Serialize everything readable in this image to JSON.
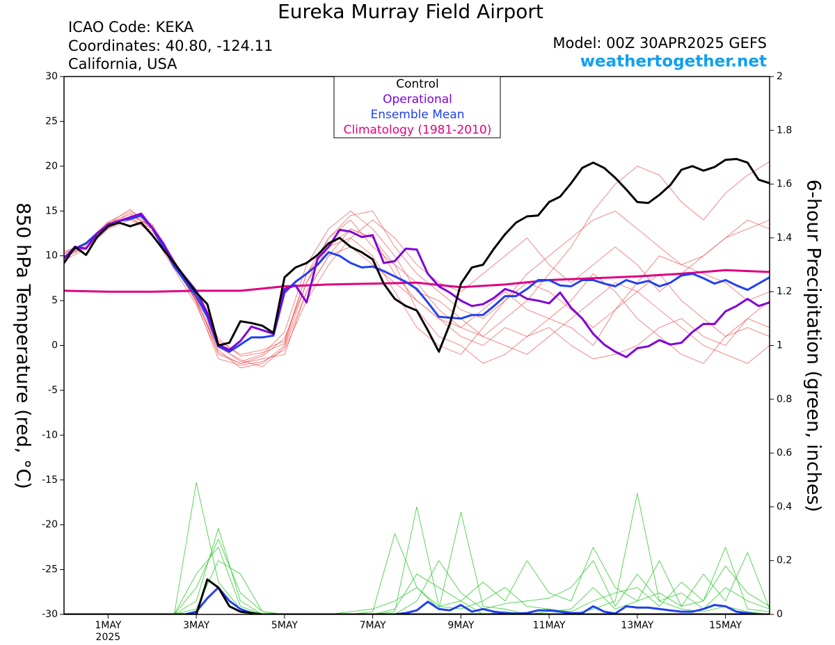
{
  "chart_data": {
    "type": "line",
    "title": "Eureka Murray Field Airport",
    "info": [
      "ICAO Code: KEKA",
      "Coordinates: 40.80, -124.11",
      "California, USA"
    ],
    "model": "Model: 00Z 30APR2025 GEFS",
    "source": "weathertogether.net",
    "ylabel": "850 hPa Temperature (red, °C)",
    "y2label": "6-hour Precipitation (green, inches)",
    "xlim": [
      0,
      384
    ],
    "xticks": [
      {
        "value": 24,
        "label": "1MAY"
      },
      {
        "value": 72,
        "label": "3MAY"
      },
      {
        "value": 120,
        "label": "5MAY"
      },
      {
        "value": 168,
        "label": "7MAY"
      },
      {
        "value": 216,
        "label": "9MAY"
      },
      {
        "value": 264,
        "label": "11MAY"
      },
      {
        "value": 312,
        "label": "13MAY"
      },
      {
        "value": 360,
        "label": "15MAY"
      }
    ],
    "x_sublabel": "2025",
    "ylim": [
      -30,
      30
    ],
    "yticks": [
      -30,
      -25,
      -20,
      -15,
      -10,
      -5,
      0,
      5,
      10,
      15,
      20,
      25,
      30
    ],
    "y2lim": [
      0,
      2
    ],
    "y2ticks": [
      0,
      0.2,
      0.4,
      0.6,
      0.8,
      1,
      1.2,
      1.4,
      1.6,
      1.8,
      2
    ],
    "x": [
      0,
      6,
      12,
      18,
      24,
      30,
      36,
      42,
      48,
      54,
      60,
      66,
      72,
      78,
      84,
      90,
      96,
      102,
      108,
      114,
      120,
      126,
      132,
      138,
      144,
      150,
      156,
      162,
      168,
      174,
      180,
      186,
      192,
      198,
      204,
      210,
      216,
      222,
      228,
      234,
      240,
      246,
      252,
      258,
      264,
      270,
      276,
      282,
      288,
      294,
      300,
      306,
      312,
      318,
      324,
      330,
      336,
      342,
      348,
      354,
      360,
      366,
      372,
      378,
      384
    ],
    "series": [
      {
        "name": "Control",
        "color": "#000000",
        "values": [
          9.2,
          11.0,
          10.1,
          12.1,
          13.3,
          13.7,
          13.3,
          13.7,
          12.3,
          10.7,
          9.2,
          7.5,
          5.9,
          4.6,
          0.0,
          0.3,
          2.7,
          2.5,
          2.2,
          1.4,
          7.6,
          8.7,
          9.2,
          10.1,
          11.4,
          12.0,
          11.0,
          10.4,
          9.6,
          6.9,
          5.2,
          4.4,
          3.9,
          1.7,
          -0.7,
          2.4,
          6.9,
          8.7,
          9.0,
          10.8,
          12.4,
          13.7,
          14.4,
          14.5,
          16.0,
          16.6,
          18.1,
          19.8,
          20.4,
          19.8,
          18.7,
          17.4,
          16.0,
          15.9,
          16.8,
          17.9,
          19.6,
          20.0,
          19.5,
          19.9,
          20.7,
          20.8,
          20.4,
          18.5,
          18.1
        ]
      },
      {
        "name": "Operational",
        "color": "#8000d8",
        "values": [
          9.7,
          11.0,
          10.8,
          12.5,
          13.5,
          13.9,
          14.3,
          14.7,
          13.1,
          11.4,
          9.2,
          7.6,
          6.1,
          3.6,
          0.1,
          -0.5,
          0.5,
          2.1,
          1.7,
          1.3,
          6.3,
          6.7,
          4.8,
          9.7,
          11.0,
          12.9,
          12.7,
          12.1,
          12.3,
          9.2,
          9.4,
          10.8,
          10.7,
          8.0,
          6.6,
          5.9,
          5.0,
          4.4,
          4.6,
          5.3,
          6.3,
          5.9,
          5.2,
          5.0,
          4.7,
          5.9,
          4.2,
          3.0,
          1.3,
          0.1,
          -0.7,
          -1.3,
          -0.3,
          -0.1,
          0.6,
          0.1,
          0.3,
          1.5,
          2.4,
          2.4,
          3.8,
          4.4,
          5.2,
          4.4,
          4.8
        ]
      },
      {
        "name": "Ensemble Mean",
        "color": "#2040f0",
        "values": [
          9.8,
          10.8,
          11.4,
          12.5,
          13.3,
          13.9,
          14.1,
          14.5,
          13.1,
          11.0,
          8.8,
          7.1,
          5.5,
          3.2,
          -0.1,
          -0.7,
          0.1,
          0.9,
          0.9,
          1.1,
          5.9,
          7.1,
          8.0,
          9.0,
          10.4,
          10.0,
          9.2,
          8.7,
          8.8,
          8.3,
          7.7,
          7.1,
          6.3,
          4.8,
          3.2,
          3.1,
          3.0,
          3.4,
          3.4,
          4.4,
          5.5,
          5.5,
          6.3,
          7.3,
          7.3,
          6.7,
          6.6,
          7.3,
          7.3,
          6.9,
          6.6,
          7.3,
          6.9,
          7.2,
          6.6,
          7.0,
          7.8,
          8.0,
          7.5,
          6.9,
          7.3,
          6.7,
          6.2,
          6.9,
          7.6
        ]
      },
      {
        "name": "Climatology (1981-2010)",
        "color": "#e0007f",
        "x": [
          0,
          24,
          48,
          72,
          96,
          120,
          144,
          168,
          192,
          216,
          240,
          264,
          288,
          312,
          336,
          360,
          384
        ],
        "values": [
          6.1,
          6.0,
          6.0,
          6.1,
          6.1,
          6.6,
          6.8,
          6.9,
          7.0,
          6.5,
          6.8,
          7.3,
          7.5,
          7.7,
          8.0,
          8.4,
          8.2
        ]
      }
    ],
    "members": {
      "color": "#f05050",
      "x": [
        0,
        12,
        24,
        36,
        48,
        60,
        72,
        84,
        96,
        108,
        120,
        132,
        144,
        156,
        168,
        180,
        192,
        204,
        216,
        228,
        240,
        252,
        264,
        276,
        288,
        300,
        312,
        324,
        336,
        348,
        360,
        372,
        384
      ],
      "values": [
        [
          10.2,
          11.5,
          13.8,
          15,
          13.5,
          9.5,
          5.5,
          0.5,
          -1,
          -0.5,
          0.5,
          8,
          12,
          14,
          11,
          9,
          7,
          4,
          2,
          1,
          3,
          5,
          8,
          11,
          15,
          18,
          20,
          19,
          16,
          14,
          17,
          19,
          20.5
        ],
        [
          9.8,
          11,
          13.2,
          14.3,
          12.5,
          8.5,
          4.5,
          -1,
          -2,
          -1.5,
          -1,
          6,
          10,
          13,
          12,
          8,
          5,
          3,
          1,
          0,
          2,
          1,
          3,
          2,
          0,
          4,
          6,
          8,
          5,
          3,
          1,
          2,
          1
        ],
        [
          10,
          11.2,
          13.5,
          14.8,
          13,
          9,
          5,
          -0.5,
          -2.5,
          -2,
          0,
          7,
          11,
          12,
          10,
          6,
          2,
          0,
          -1,
          2,
          5,
          8,
          10,
          12,
          14,
          15,
          13,
          11,
          9,
          10,
          12,
          13,
          14
        ],
        [
          9.5,
          10.8,
          13,
          14,
          12.8,
          8.8,
          5.2,
          0,
          -1.8,
          -1,
          1.5,
          9,
          13,
          15,
          13,
          10,
          6,
          5,
          3,
          1,
          0,
          -1,
          1,
          3,
          5,
          7,
          6,
          4,
          2,
          0,
          -1,
          -2,
          0
        ],
        [
          10.5,
          11.3,
          13.7,
          14.6,
          13.2,
          9.2,
          4.8,
          -1.5,
          -2.2,
          -1.8,
          -0.5,
          5,
          9,
          12,
          14,
          12,
          9,
          7,
          6,
          8,
          10,
          12,
          9,
          7,
          9,
          11,
          9,
          6,
          8,
          10,
          12,
          14,
          13
        ],
        [
          10,
          11,
          13.4,
          14.2,
          13,
          9.4,
          5.6,
          0.8,
          -1.2,
          -0.8,
          0.2,
          8,
          11,
          13,
          12,
          9,
          4,
          1,
          0,
          -2,
          -1,
          1,
          2,
          0,
          -1.5,
          -1,
          0,
          2,
          3,
          1,
          0,
          3,
          5
        ],
        [
          9.9,
          10.9,
          13.1,
          14.4,
          13.4,
          9.1,
          5.1,
          -0.8,
          -2,
          -1.2,
          0.8,
          7,
          12,
          14.5,
          15,
          11,
          8,
          6,
          4,
          3,
          5,
          7,
          6,
          4,
          2,
          4,
          7,
          10,
          9,
          8,
          7,
          5,
          6
        ],
        [
          10.3,
          11.4,
          13.6,
          15.2,
          13.1,
          8.9,
          4.9,
          -0.2,
          -1.6,
          -2.4,
          -0.2,
          6,
          10,
          11,
          9,
          7,
          5,
          3,
          2,
          4,
          6,
          4,
          3,
          5,
          8,
          6,
          3,
          1,
          -1,
          -2,
          1,
          3,
          2
        ]
      ]
    },
    "precip_members": {
      "color": "#33cc33",
      "axis": "y2",
      "x": [
        0,
        12,
        24,
        36,
        48,
        60,
        72,
        84,
        96,
        108,
        120,
        132,
        144,
        156,
        168,
        180,
        192,
        204,
        216,
        228,
        240,
        252,
        264,
        276,
        288,
        300,
        312,
        324,
        336,
        348,
        360,
        372,
        384
      ],
      "values": [
        [
          0,
          0,
          0,
          0,
          0,
          0,
          0.49,
          0.12,
          0.02,
          0,
          0,
          0,
          0,
          0,
          0,
          0.01,
          0.4,
          0.03,
          0.05,
          0,
          0.01,
          0,
          0,
          0,
          0.02,
          0.05,
          0.45,
          0.05,
          0.02,
          0.01,
          0.03,
          0.01,
          0
        ],
        [
          0,
          0,
          0,
          0,
          0,
          0,
          0.05,
          0.32,
          0.05,
          0,
          0,
          0,
          0,
          0,
          0.01,
          0.3,
          0.1,
          0.02,
          0.38,
          0.03,
          0.02,
          0,
          0.01,
          0.02,
          0.1,
          0.02,
          0.05,
          0.2,
          0.03,
          0.05,
          0.25,
          0.02,
          0.01
        ],
        [
          0,
          0,
          0,
          0,
          0,
          0,
          0.1,
          0.28,
          0.08,
          0.01,
          0,
          0,
          0,
          0,
          0,
          0.02,
          0.15,
          0.1,
          0.05,
          0.12,
          0.05,
          0.2,
          0.08,
          0.05,
          0.25,
          0.1,
          0.05,
          0.08,
          0.03,
          0.15,
          0.05,
          0.23,
          0.02
        ],
        [
          0,
          0,
          0,
          0,
          0,
          0,
          0.02,
          0.2,
          0.15,
          0.01,
          0,
          0,
          0,
          0.01,
          0.02,
          0.05,
          0.1,
          0.03,
          0.02,
          0.05,
          0.1,
          0.03,
          0.02,
          0.01,
          0.05,
          0.08,
          0.1,
          0.03,
          0.12,
          0.05,
          0.18,
          0.08,
          0.03
        ],
        [
          0,
          0,
          0,
          0,
          0,
          0,
          0.15,
          0.25,
          0.03,
          0,
          0,
          0,
          0,
          0,
          0,
          0,
          0.05,
          0.2,
          0.08,
          0.02,
          0.04,
          0.05,
          0.06,
          0.1,
          0.2,
          0.03,
          0.15,
          0.05,
          0.08,
          0.02,
          0.1,
          0.05,
          0.02
        ]
      ]
    },
    "precip_series": [
      {
        "color": "#000000",
        "axis": "y2",
        "values": [
          0,
          0,
          0,
          0,
          0,
          0,
          0,
          0,
          0,
          0,
          0,
          0,
          0,
          0.13,
          0.1,
          0.03,
          0.01,
          0.005,
          0,
          0,
          0,
          0,
          0,
          0,
          0,
          0,
          0,
          0,
          0,
          0,
          0,
          0,
          0,
          0,
          0,
          0,
          0,
          0,
          0,
          0,
          0,
          0,
          0,
          0,
          0,
          0,
          0,
          0,
          0,
          0,
          0,
          0,
          0,
          0,
          0,
          0,
          0,
          0,
          0,
          0,
          0,
          0,
          0,
          0,
          0
        ]
      },
      {
        "color": "#2040f0",
        "axis": "y2",
        "values": [
          0,
          0,
          0,
          0,
          0,
          0,
          0,
          0,
          0,
          0,
          0,
          0,
          0.01,
          0.06,
          0.1,
          0.05,
          0.02,
          0.005,
          0,
          0,
          0,
          0,
          0,
          0,
          0,
          0,
          0,
          0,
          0,
          0,
          0,
          0.005,
          0.015,
          0.047,
          0.02,
          0.015,
          0.035,
          0.01,
          0.02,
          0.01,
          0.005,
          0.003,
          0.005,
          0.015,
          0.015,
          0.01,
          0.005,
          0.005,
          0.03,
          0.01,
          0.003,
          0.03,
          0.025,
          0.025,
          0.02,
          0.015,
          0.01,
          0.01,
          0.02,
          0.035,
          0.03,
          0.01,
          0.005,
          0,
          0
        ]
      }
    ]
  }
}
